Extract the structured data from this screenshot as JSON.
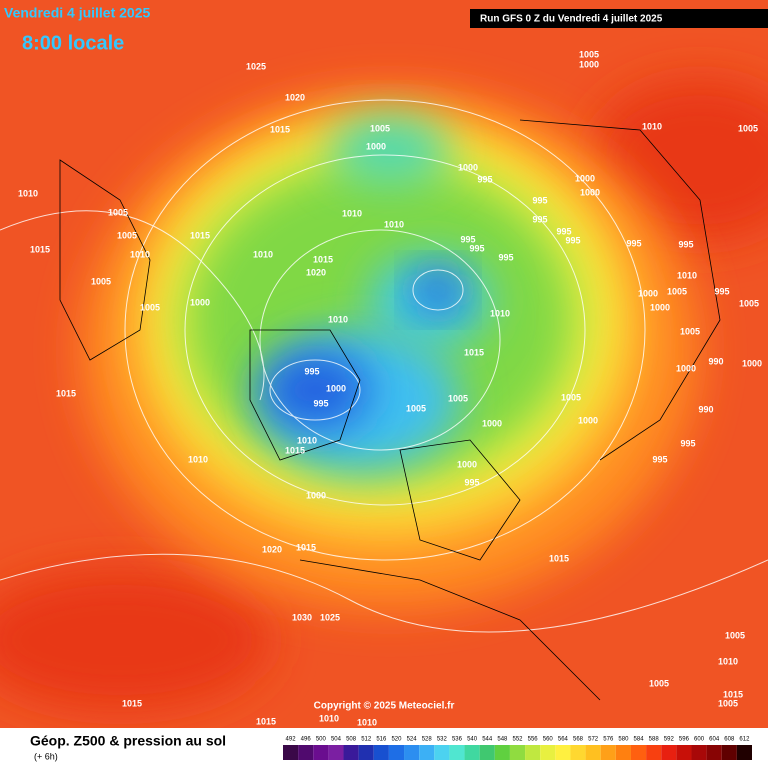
{
  "header": {
    "date": "Vendredi 4 juillet 2025",
    "time": "8:00 locale",
    "run": "Run GFS 0 Z du Vendredi 4 juillet 2025"
  },
  "map": {
    "isobar_labels": [
      1025,
      1020,
      1015,
      1005,
      1000,
      1005,
      1000,
      1010,
      1005,
      1010,
      1005,
      1005,
      1015,
      1010,
      1005,
      1005,
      1015,
      1010,
      1010,
      1010,
      1015,
      1020,
      1000,
      995,
      995,
      995,
      1000,
      1000,
      995,
      995,
      995,
      995,
      995,
      995,
      995,
      1010,
      1005,
      995,
      1000,
      1000,
      1005,
      1000,
      1010,
      1010,
      1005,
      1000,
      990,
      1000,
      1015,
      995,
      1000,
      995,
      1005,
      1005,
      1000,
      1005,
      1000,
      990,
      995,
      995,
      1015,
      1010,
      1015,
      1010,
      1000,
      995,
      1000,
      1020,
      1015,
      1015,
      1030,
      1025,
      1005,
      1010,
      1005,
      1015,
      1005,
      1015,
      1015,
      1010,
      1010
    ],
    "copyright": "Copyright © 2025 Meteociel.fr"
  },
  "legend": {
    "title": "Géop. Z500 & pression au sol",
    "subtitle": "(+ 6h)",
    "values": [
      492,
      496,
      500,
      504,
      508,
      512,
      516,
      520,
      524,
      528,
      532,
      536,
      540,
      544,
      548,
      552,
      556,
      560,
      564,
      568,
      572,
      576,
      580,
      584,
      588,
      592,
      596,
      600,
      604,
      608,
      612
    ],
    "colors": [
      "#3a0848",
      "#500a6e",
      "#6a0d8f",
      "#7b1fa2",
      "#3a1a9a",
      "#2030b0",
      "#1850d0",
      "#1e6ee6",
      "#2c8ef0",
      "#3cb0f5",
      "#4cd2f0",
      "#50e6d0",
      "#40d8a0",
      "#40c870",
      "#60d040",
      "#90dc40",
      "#c0e840",
      "#e8f040",
      "#fff040",
      "#ffd830",
      "#ffc020",
      "#ffa018",
      "#ff8010",
      "#ff6010",
      "#f84010",
      "#e82010",
      "#c81008",
      "#a80808",
      "#880404",
      "#600000",
      "#200000"
    ]
  }
}
